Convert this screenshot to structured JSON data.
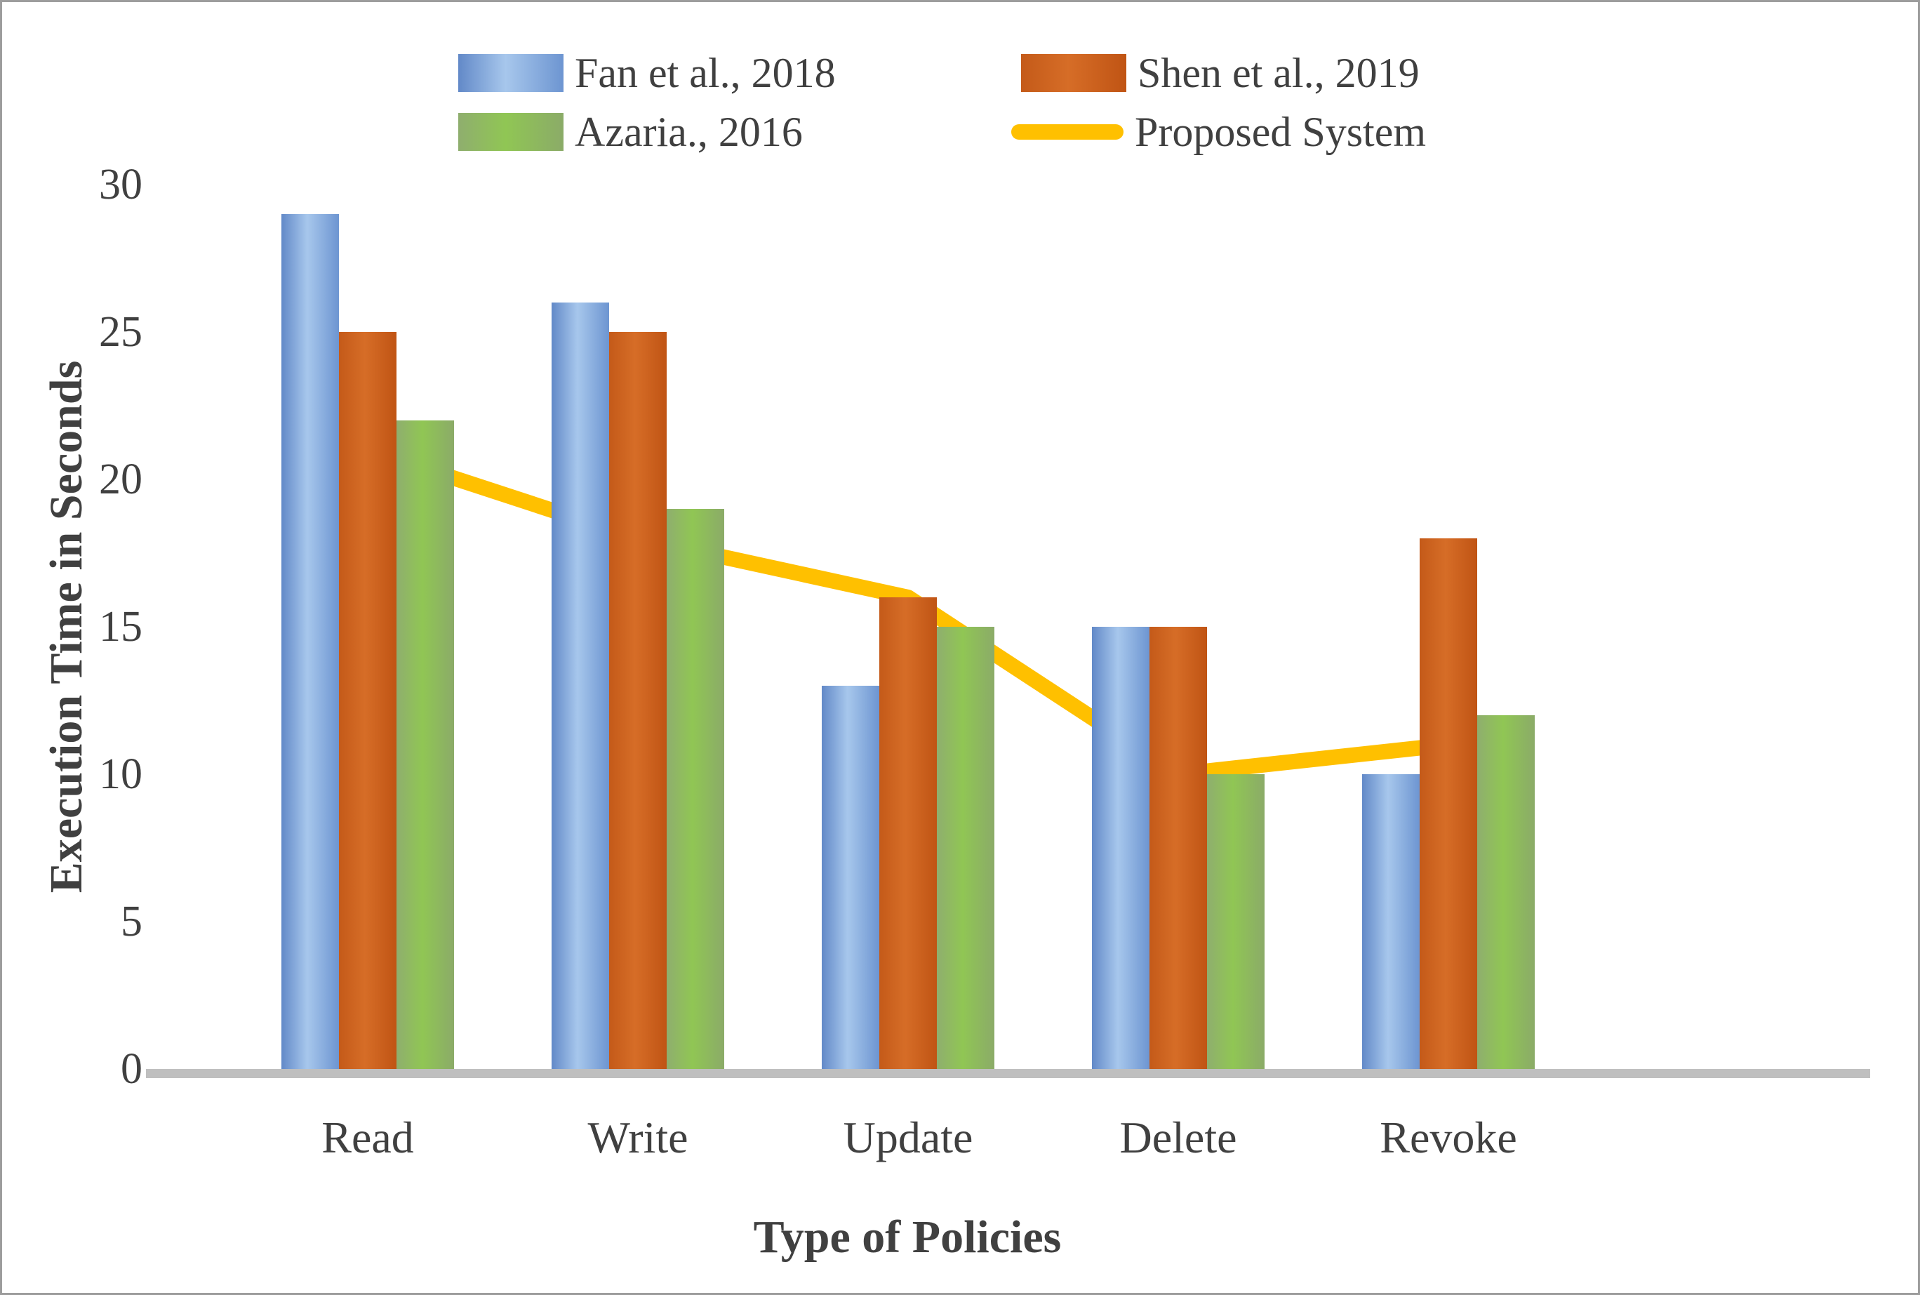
{
  "chart_data": {
    "type": "bar",
    "subtype": "grouped-bars-with-line-overlay",
    "categories": [
      "Read",
      "Write",
      "Update",
      "Delete",
      "Revoke"
    ],
    "series": [
      {
        "name": "Fan et al., 2018",
        "type": "bar",
        "color": "#6f9ad6",
        "values": [
          29,
          26,
          13,
          15,
          10
        ]
      },
      {
        "name": "Shen et al., 2019",
        "type": "bar",
        "color": "#cf6125",
        "values": [
          25,
          25,
          16,
          15,
          18
        ]
      },
      {
        "name": "Azaria., 2016",
        "type": "bar",
        "color": "#8fbf5f",
        "values": [
          22,
          19,
          15,
          10,
          12
        ]
      },
      {
        "name": "Proposed System",
        "type": "line",
        "color": "#ffc000",
        "values": [
          21,
          18,
          16,
          10,
          11
        ]
      }
    ],
    "xlabel": "Type of Policies",
    "ylabel": "Execution Time in Seconds",
    "y_ticks": [
      0,
      5,
      10,
      15,
      20,
      25,
      30
    ],
    "ylim": [
      0,
      30
    ],
    "grid": false,
    "legend_position": "top"
  },
  "colors": {
    "text": "#404040",
    "axis_line": "#bfbfbf",
    "frame_border": "#9d9d9d",
    "background": "#ffffff",
    "bar_blue": "#6f9ad6",
    "bar_orange": "#cf6125",
    "bar_green": "#8fbf5f",
    "line_yellow": "#ffc000"
  }
}
